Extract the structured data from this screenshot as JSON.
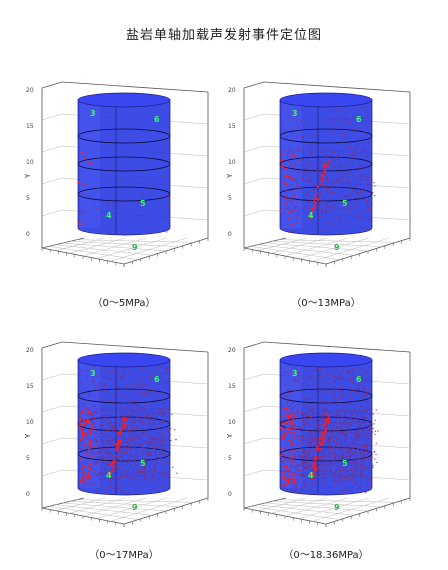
{
  "title": "盐岩单轴加载声发射事件定位图",
  "theme": {
    "cylinder": "#2233e0",
    "cylinder_top": "#3a46f0",
    "event": "#8a2a6a",
    "hot_event": "#ff1a1a",
    "sensor_label": "#33ff66",
    "bg": "#ffffff"
  },
  "chart_data": [
    {
      "type": "scatter",
      "caption": "（0～5MPa）",
      "events": 60,
      "hot_events": 8,
      "fracture_band": false,
      "sensors": [
        "3",
        "6",
        "4",
        "5",
        "9"
      ],
      "ytick_labels": [
        "20",
        "15",
        "10",
        "5",
        "0"
      ],
      "axis_label": "Y",
      "grid": true
    },
    {
      "type": "scatter",
      "caption": "（0～13MPa）",
      "events": 520,
      "hot_events": 55,
      "fracture_band": true,
      "sensors": [
        "3",
        "6",
        "4",
        "5",
        "9"
      ],
      "ytick_labels": [
        "20",
        "15",
        "10",
        "5",
        "0"
      ],
      "axis_label": "Y",
      "grid": true
    },
    {
      "type": "scatter",
      "caption": "（0～17MPa）",
      "events": 1100,
      "hot_events": 110,
      "fracture_band": true,
      "sensors": [
        "3",
        "6",
        "4",
        "5",
        "9"
      ],
      "ytick_labels": [
        "20",
        "15",
        "10",
        "5",
        "0"
      ],
      "axis_label": "Y",
      "grid": true
    },
    {
      "type": "scatter",
      "caption": "（0～18.36MPa）",
      "events": 1400,
      "hot_events": 130,
      "fracture_band": true,
      "sensors": [
        "3",
        "6",
        "4",
        "5",
        "9"
      ],
      "ytick_labels": [
        "20",
        "15",
        "10",
        "5",
        "0"
      ],
      "axis_label": "Y",
      "grid": true
    }
  ]
}
